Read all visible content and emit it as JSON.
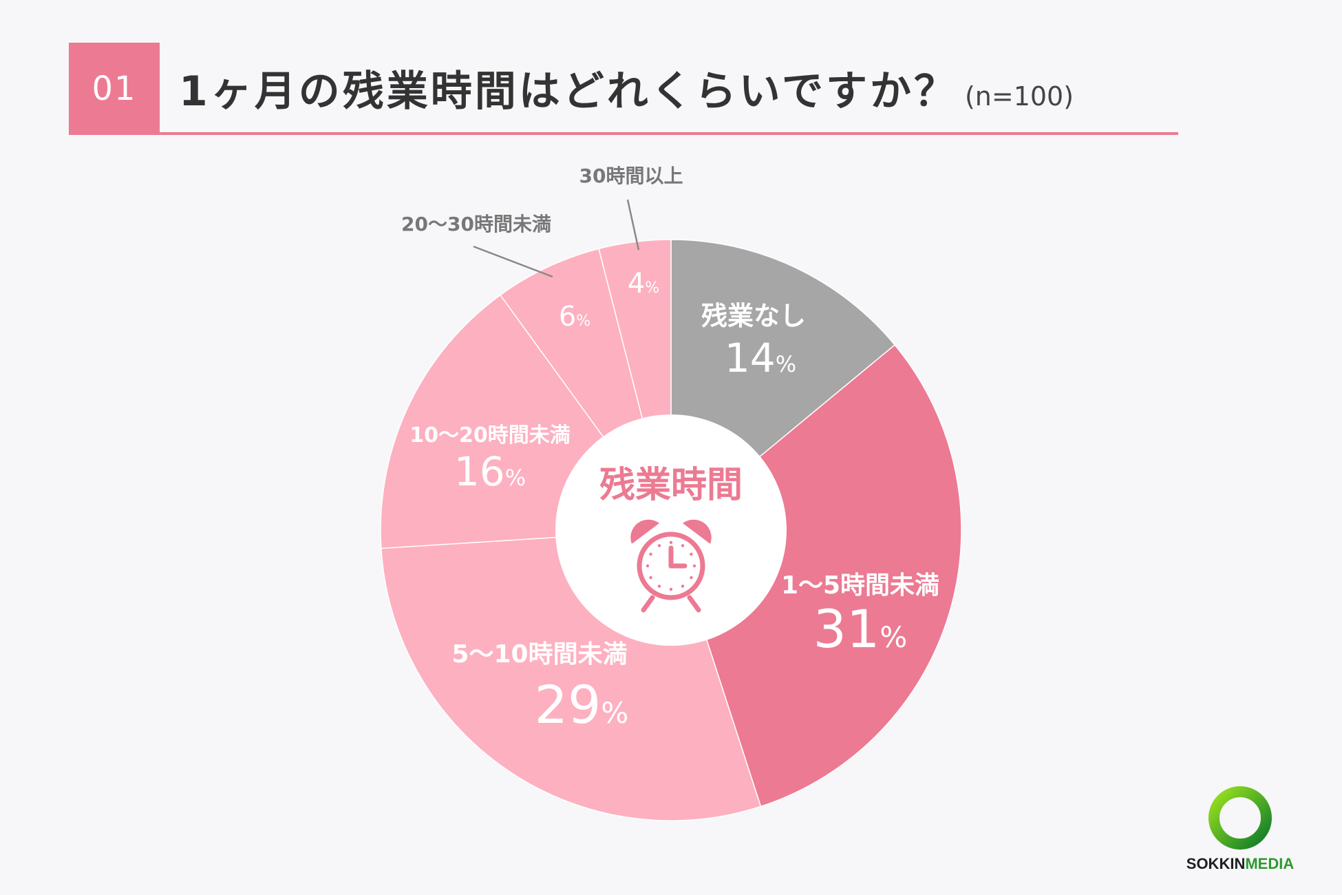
{
  "header": {
    "number": "01",
    "title": "1ヶ月の残業時間はどれくらいですか？",
    "sample": "(n=100)"
  },
  "center": {
    "label": "残業時間",
    "icon": "alarm-clock-icon"
  },
  "chart_data": {
    "type": "pie",
    "title": "1ヶ月の残業時間はどれくらいですか？",
    "slices": [
      {
        "label": "残業なし",
        "value": 14,
        "color": "#a6a6a6"
      },
      {
        "label": "1〜5時間未満",
        "value": 31,
        "color": "#ec7a92"
      },
      {
        "label": "5〜10時間未満",
        "value": 29,
        "color": "#fdb0c0"
      },
      {
        "label": "10〜20時間未満",
        "value": 16,
        "color": "#fdb0c0"
      },
      {
        "label": "20〜30時間未満",
        "value": 6,
        "color": "#fdb0c0"
      },
      {
        "label": "30時間以上",
        "value": 4,
        "color": "#fdb0c0"
      }
    ],
    "unit": "%"
  },
  "brand": {
    "name_part1": "SOKKIN",
    "name_part2": "MEDIA",
    "icon": "sokkin-ring-logo-icon"
  },
  "colors": {
    "accent": "#ec7a92",
    "light": "#fdb0c0",
    "gray": "#a6a6a6",
    "background": "#f7f6f8"
  }
}
